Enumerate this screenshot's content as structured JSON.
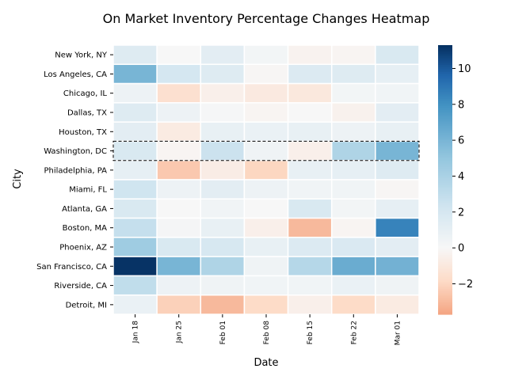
{
  "chart_data": {
    "type": "heatmap",
    "title": "On Market Inventory Percentage Changes Heatmap",
    "xlabel": "Date",
    "ylabel": "City",
    "x": [
      "Jan 18",
      "Jan 25",
      "Feb 01",
      "Feb 08",
      "Feb 15",
      "Feb 22",
      "Mar 01"
    ],
    "y": [
      "New York, NY",
      "Los Angeles, CA",
      "Chicago, IL",
      "Dallas, TX",
      "Houston, TX",
      "Washington, DC",
      "Philadelphia, PA",
      "Miami, FL",
      "Atlanta, GA",
      "Boston, MA",
      "Phoenix, AZ",
      "San Francisco, CA",
      "Riverside, CA",
      "Detroit, MI"
    ],
    "values": [
      [
        1.5,
        0.0,
        1.2,
        0.3,
        -0.3,
        -0.2,
        1.8
      ],
      [
        6.0,
        2.0,
        1.5,
        -0.1,
        1.6,
        1.5,
        1.0
      ],
      [
        0.6,
        -1.5,
        -0.5,
        -0.9,
        -1.0,
        0.3,
        0.4
      ],
      [
        1.5,
        0.6,
        0.1,
        -0.2,
        0.0,
        -0.4,
        1.2
      ],
      [
        1.2,
        -0.8,
        0.9,
        0.8,
        0.9,
        0.6,
        0.9
      ],
      [
        1.8,
        -0.2,
        2.5,
        0.5,
        -0.5,
        3.8,
        6.0
      ],
      [
        1.0,
        -2.5,
        -0.7,
        -2.0,
        0.9,
        1.0,
        1.5
      ],
      [
        2.3,
        0.6,
        1.2,
        0.6,
        0.4,
        0.4,
        -0.1
      ],
      [
        1.8,
        0.0,
        0.4,
        0.0,
        1.8,
        0.3,
        1.0
      ],
      [
        2.8,
        0.2,
        0.9,
        -0.5,
        -3.0,
        -0.2,
        8.5
      ],
      [
        4.5,
        1.8,
        1.9,
        0.9,
        1.6,
        1.7,
        1.2
      ],
      [
        11.2,
        6.0,
        3.8,
        0.5,
        3.5,
        6.5,
        6.2
      ],
      [
        3.0,
        0.6,
        0.5,
        0.4,
        0.4,
        0.8,
        0.5
      ],
      [
        0.8,
        -2.2,
        -3.0,
        -1.8,
        -0.5,
        -1.8,
        -0.8
      ]
    ],
    "zlim": [
      -3.7,
      11.3
    ],
    "colorbar_ticks": [
      -2,
      0,
      2,
      4,
      6,
      8,
      10
    ],
    "colormap": "RdBu",
    "highlight_row": "Washington, DC",
    "grid": false
  }
}
